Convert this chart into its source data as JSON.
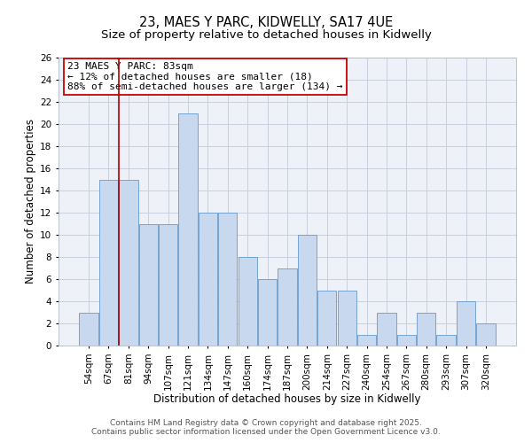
{
  "title": "23, MAES Y PARC, KIDWELLY, SA17 4UE",
  "subtitle": "Size of property relative to detached houses in Kidwelly",
  "xlabel": "Distribution of detached houses by size in Kidwelly",
  "ylabel": "Number of detached properties",
  "categories": [
    "54sqm",
    "67sqm",
    "81sqm",
    "94sqm",
    "107sqm",
    "121sqm",
    "134sqm",
    "147sqm",
    "160sqm",
    "174sqm",
    "187sqm",
    "200sqm",
    "214sqm",
    "227sqm",
    "240sqm",
    "254sqm",
    "267sqm",
    "280sqm",
    "293sqm",
    "307sqm",
    "320sqm"
  ],
  "values": [
    3,
    15,
    15,
    11,
    11,
    21,
    12,
    12,
    8,
    6,
    7,
    10,
    5,
    5,
    1,
    3,
    1,
    3,
    1,
    4,
    2
  ],
  "bar_color": "#c8d8ee",
  "bar_edgecolor": "#6699cc",
  "bar_linewidth": 0.6,
  "vline_x": 1.5,
  "vline_color": "#aa0000",
  "annotation_title": "23 MAES Y PARC: 83sqm",
  "annotation_line1": "← 12% of detached houses are smaller (18)",
  "annotation_line2": "88% of semi-detached houses are larger (134) →",
  "annotation_box_edgecolor": "#cc0000",
  "ylim": [
    0,
    26
  ],
  "yticks": [
    0,
    2,
    4,
    6,
    8,
    10,
    12,
    14,
    16,
    18,
    20,
    22,
    24,
    26
  ],
  "grid_color": "#c8d0de",
  "background_color": "#eef2f8",
  "footer_line1": "Contains HM Land Registry data © Crown copyright and database right 2025.",
  "footer_line2": "Contains public sector information licensed under the Open Government Licence v3.0.",
  "title_fontsize": 10.5,
  "subtitle_fontsize": 9.5,
  "xlabel_fontsize": 8.5,
  "ylabel_fontsize": 8.5,
  "tick_fontsize": 7.5,
  "annotation_fontsize": 8,
  "footer_fontsize": 6.5
}
